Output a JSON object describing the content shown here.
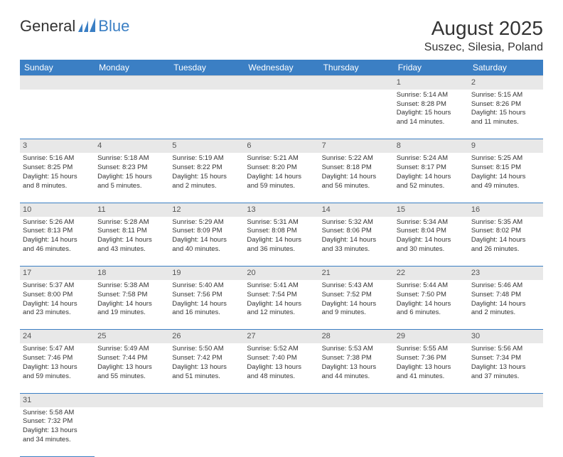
{
  "logo": {
    "text1": "General",
    "text2": "Blue"
  },
  "title": "August 2025",
  "location": "Suszec, Silesia, Poland",
  "colors": {
    "header_bg": "#3b7fc4",
    "daynum_bg": "#e8e8e8",
    "border": "#3b7fc4"
  },
  "days": [
    "Sunday",
    "Monday",
    "Tuesday",
    "Wednesday",
    "Thursday",
    "Friday",
    "Saturday"
  ],
  "weeks": [
    {
      "nums": [
        "",
        "",
        "",
        "",
        "",
        "1",
        "2"
      ],
      "cells": [
        null,
        null,
        null,
        null,
        null,
        {
          "sr": "Sunrise: 5:14 AM",
          "ss": "Sunset: 8:28 PM",
          "d1": "Daylight: 15 hours",
          "d2": "and 14 minutes."
        },
        {
          "sr": "Sunrise: 5:15 AM",
          "ss": "Sunset: 8:26 PM",
          "d1": "Daylight: 15 hours",
          "d2": "and 11 minutes."
        }
      ]
    },
    {
      "nums": [
        "3",
        "4",
        "5",
        "6",
        "7",
        "8",
        "9"
      ],
      "cells": [
        {
          "sr": "Sunrise: 5:16 AM",
          "ss": "Sunset: 8:25 PM",
          "d1": "Daylight: 15 hours",
          "d2": "and 8 minutes."
        },
        {
          "sr": "Sunrise: 5:18 AM",
          "ss": "Sunset: 8:23 PM",
          "d1": "Daylight: 15 hours",
          "d2": "and 5 minutes."
        },
        {
          "sr": "Sunrise: 5:19 AM",
          "ss": "Sunset: 8:22 PM",
          "d1": "Daylight: 15 hours",
          "d2": "and 2 minutes."
        },
        {
          "sr": "Sunrise: 5:21 AM",
          "ss": "Sunset: 8:20 PM",
          "d1": "Daylight: 14 hours",
          "d2": "and 59 minutes."
        },
        {
          "sr": "Sunrise: 5:22 AM",
          "ss": "Sunset: 8:18 PM",
          "d1": "Daylight: 14 hours",
          "d2": "and 56 minutes."
        },
        {
          "sr": "Sunrise: 5:24 AM",
          "ss": "Sunset: 8:17 PM",
          "d1": "Daylight: 14 hours",
          "d2": "and 52 minutes."
        },
        {
          "sr": "Sunrise: 5:25 AM",
          "ss": "Sunset: 8:15 PM",
          "d1": "Daylight: 14 hours",
          "d2": "and 49 minutes."
        }
      ]
    },
    {
      "nums": [
        "10",
        "11",
        "12",
        "13",
        "14",
        "15",
        "16"
      ],
      "cells": [
        {
          "sr": "Sunrise: 5:26 AM",
          "ss": "Sunset: 8:13 PM",
          "d1": "Daylight: 14 hours",
          "d2": "and 46 minutes."
        },
        {
          "sr": "Sunrise: 5:28 AM",
          "ss": "Sunset: 8:11 PM",
          "d1": "Daylight: 14 hours",
          "d2": "and 43 minutes."
        },
        {
          "sr": "Sunrise: 5:29 AM",
          "ss": "Sunset: 8:09 PM",
          "d1": "Daylight: 14 hours",
          "d2": "and 40 minutes."
        },
        {
          "sr": "Sunrise: 5:31 AM",
          "ss": "Sunset: 8:08 PM",
          "d1": "Daylight: 14 hours",
          "d2": "and 36 minutes."
        },
        {
          "sr": "Sunrise: 5:32 AM",
          "ss": "Sunset: 8:06 PM",
          "d1": "Daylight: 14 hours",
          "d2": "and 33 minutes."
        },
        {
          "sr": "Sunrise: 5:34 AM",
          "ss": "Sunset: 8:04 PM",
          "d1": "Daylight: 14 hours",
          "d2": "and 30 minutes."
        },
        {
          "sr": "Sunrise: 5:35 AM",
          "ss": "Sunset: 8:02 PM",
          "d1": "Daylight: 14 hours",
          "d2": "and 26 minutes."
        }
      ]
    },
    {
      "nums": [
        "17",
        "18",
        "19",
        "20",
        "21",
        "22",
        "23"
      ],
      "cells": [
        {
          "sr": "Sunrise: 5:37 AM",
          "ss": "Sunset: 8:00 PM",
          "d1": "Daylight: 14 hours",
          "d2": "and 23 minutes."
        },
        {
          "sr": "Sunrise: 5:38 AM",
          "ss": "Sunset: 7:58 PM",
          "d1": "Daylight: 14 hours",
          "d2": "and 19 minutes."
        },
        {
          "sr": "Sunrise: 5:40 AM",
          "ss": "Sunset: 7:56 PM",
          "d1": "Daylight: 14 hours",
          "d2": "and 16 minutes."
        },
        {
          "sr": "Sunrise: 5:41 AM",
          "ss": "Sunset: 7:54 PM",
          "d1": "Daylight: 14 hours",
          "d2": "and 12 minutes."
        },
        {
          "sr": "Sunrise: 5:43 AM",
          "ss": "Sunset: 7:52 PM",
          "d1": "Daylight: 14 hours",
          "d2": "and 9 minutes."
        },
        {
          "sr": "Sunrise: 5:44 AM",
          "ss": "Sunset: 7:50 PM",
          "d1": "Daylight: 14 hours",
          "d2": "and 6 minutes."
        },
        {
          "sr": "Sunrise: 5:46 AM",
          "ss": "Sunset: 7:48 PM",
          "d1": "Daylight: 14 hours",
          "d2": "and 2 minutes."
        }
      ]
    },
    {
      "nums": [
        "24",
        "25",
        "26",
        "27",
        "28",
        "29",
        "30"
      ],
      "cells": [
        {
          "sr": "Sunrise: 5:47 AM",
          "ss": "Sunset: 7:46 PM",
          "d1": "Daylight: 13 hours",
          "d2": "and 59 minutes."
        },
        {
          "sr": "Sunrise: 5:49 AM",
          "ss": "Sunset: 7:44 PM",
          "d1": "Daylight: 13 hours",
          "d2": "and 55 minutes."
        },
        {
          "sr": "Sunrise: 5:50 AM",
          "ss": "Sunset: 7:42 PM",
          "d1": "Daylight: 13 hours",
          "d2": "and 51 minutes."
        },
        {
          "sr": "Sunrise: 5:52 AM",
          "ss": "Sunset: 7:40 PM",
          "d1": "Daylight: 13 hours",
          "d2": "and 48 minutes."
        },
        {
          "sr": "Sunrise: 5:53 AM",
          "ss": "Sunset: 7:38 PM",
          "d1": "Daylight: 13 hours",
          "d2": "and 44 minutes."
        },
        {
          "sr": "Sunrise: 5:55 AM",
          "ss": "Sunset: 7:36 PM",
          "d1": "Daylight: 13 hours",
          "d2": "and 41 minutes."
        },
        {
          "sr": "Sunrise: 5:56 AM",
          "ss": "Sunset: 7:34 PM",
          "d1": "Daylight: 13 hours",
          "d2": "and 37 minutes."
        }
      ]
    },
    {
      "nums": [
        "31",
        "",
        "",
        "",
        "",
        "",
        ""
      ],
      "cells": [
        {
          "sr": "Sunrise: 5:58 AM",
          "ss": "Sunset: 7:32 PM",
          "d1": "Daylight: 13 hours",
          "d2": "and 34 minutes."
        },
        null,
        null,
        null,
        null,
        null,
        null
      ]
    }
  ]
}
